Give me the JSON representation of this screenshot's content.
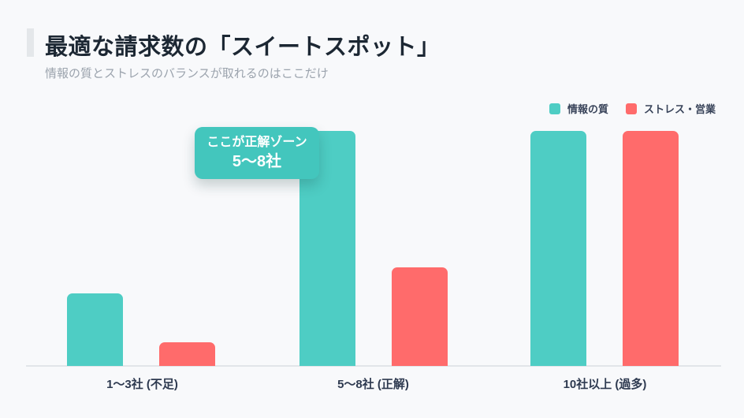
{
  "page": {
    "background": "#f8f9fb",
    "accent_bar_color": "#e4e7ea"
  },
  "header": {
    "title": "最適な請求数の「スイートスポット」",
    "subtitle": "情報の質とストレスのバランスが取れるのはここだけ"
  },
  "legend": [
    {
      "label": "情報の質",
      "color": "#4ecdc4"
    },
    {
      "label": "ストレス・営業",
      "color": "#ff6b6b"
    }
  ],
  "callout": {
    "line1": "ここが正解ゾーン",
    "line2": "5〜8社",
    "color": "#43c6bd",
    "text_color": "#ffffff"
  },
  "chart_data": {
    "type": "bar",
    "title": "最適な請求数の「スイートスポット」",
    "subtitle": "情報の質とストレスのバランスが取れるのはここだけ",
    "categories": [
      "1〜3社 (不足)",
      "5〜8社 (正解)",
      "10社以上 (過多)"
    ],
    "series": [
      {
        "name": "情報の質",
        "color": "#4ecdc4",
        "values": [
          3.1,
          10,
          10
        ]
      },
      {
        "name": "ストレス・営業",
        "color": "#ff6b6b",
        "values": [
          1,
          4.2,
          10
        ]
      }
    ],
    "xlabel": "",
    "ylabel": "",
    "ylim": [
      0,
      10
    ],
    "grid": false,
    "y_axis_visible": false,
    "legend_position": "top-right",
    "annotation": {
      "text": "ここが正解ゾーン 5〜8社",
      "target_category": "5〜8社 (正解)"
    }
  }
}
